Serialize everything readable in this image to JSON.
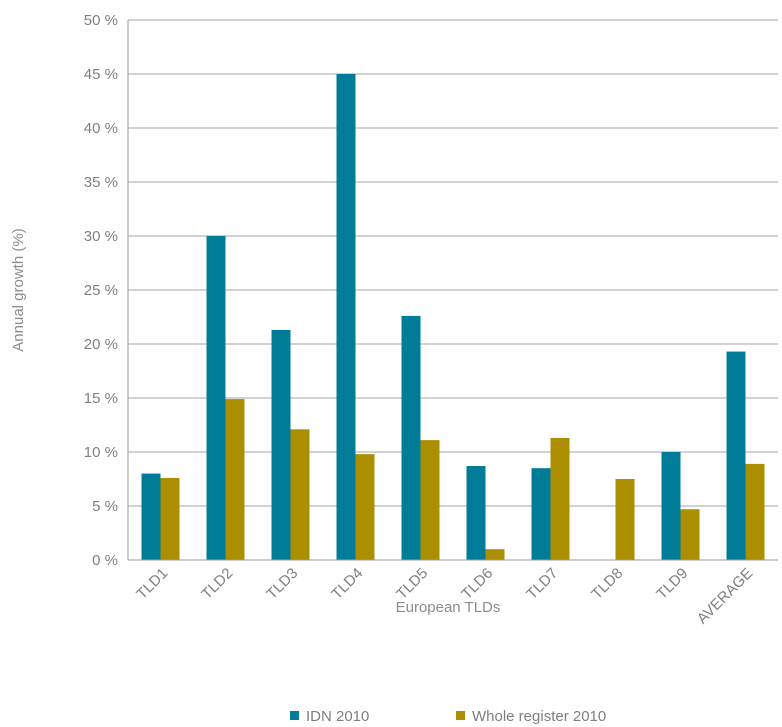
{
  "chart_data": {
    "type": "bar",
    "title": "",
    "xlabel": "European TLDs",
    "ylabel": "Annual growth (%)",
    "ylim": [
      0,
      50
    ],
    "y_tick_step": 5,
    "y_tick_suffix": " %",
    "grid": true,
    "legend_position": "bottom",
    "categories": [
      "TLD1",
      "TLD2",
      "TLD3",
      "TLD4",
      "TLD5",
      "TLD6",
      "TLD7",
      "TLD8",
      "TLD9",
      "AVERAGE"
    ],
    "series": [
      {
        "name": "IDN 2010",
        "color": "#007c98",
        "values": [
          8.0,
          30.0,
          21.3,
          45.0,
          22.6,
          8.7,
          8.5,
          0,
          10.0,
          19.3
        ]
      },
      {
        "name": "Whole register 2010",
        "color": "#ab8f00",
        "values": [
          7.6,
          14.9,
          12.1,
          9.8,
          11.1,
          1.0,
          11.3,
          7.5,
          4.7,
          8.9
        ]
      }
    ]
  }
}
